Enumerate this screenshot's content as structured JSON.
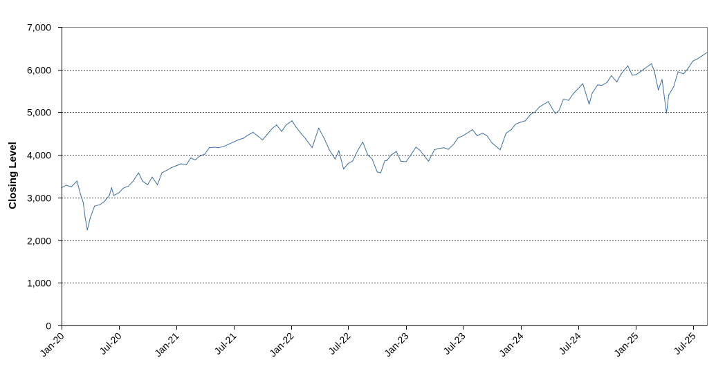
{
  "chart_data": {
    "type": "line",
    "title": "",
    "xlabel": "",
    "ylabel": "Closing Level",
    "ylim": [
      0,
      7000
    ],
    "yticks": [
      0,
      1000,
      2000,
      3000,
      4000,
      5000,
      6000,
      7000
    ],
    "ytick_labels": [
      "0",
      "1,000",
      "2,000",
      "3,000",
      "4,000",
      "5,000",
      "6,000",
      "7,000"
    ],
    "xlim": [
      "2020-01-01",
      "2025-08-15"
    ],
    "xticks": [
      "2020-01-01",
      "2020-07-01",
      "2021-01-01",
      "2021-07-01",
      "2022-01-01",
      "2022-07-01",
      "2023-01-01",
      "2023-07-01",
      "2024-01-01",
      "2024-07-01",
      "2025-01-01",
      "2025-07-01"
    ],
    "xtick_labels": [
      "Jan-20",
      "Jul-20",
      "Jan-21",
      "Jul-21",
      "Jan-22",
      "Jul-22",
      "Jan-23",
      "Jul-23",
      "Jan-24",
      "Jul-24",
      "Jan-25",
      "Jul-25"
    ],
    "grid": {
      "horizontal": true,
      "style": "dashed"
    },
    "line_color": "#3a6ea5",
    "series": [
      {
        "x": [
          "2020-01-01",
          "2020-01-15",
          "2020-02-01",
          "2020-02-19",
          "2020-03-01",
          "2020-03-10",
          "2020-03-16",
          "2020-03-23",
          "2020-04-01",
          "2020-04-15",
          "2020-05-01",
          "2020-05-15",
          "2020-06-01",
          "2020-06-08",
          "2020-06-15",
          "2020-07-01",
          "2020-07-15",
          "2020-08-01",
          "2020-08-15",
          "2020-09-02",
          "2020-09-15",
          "2020-10-01",
          "2020-10-15",
          "2020-11-01",
          "2020-11-15",
          "2020-12-01",
          "2020-12-15",
          "2021-01-01",
          "2021-01-15",
          "2021-02-01",
          "2021-02-15",
          "2021-03-01",
          "2021-03-15",
          "2021-04-01",
          "2021-04-15",
          "2021-05-01",
          "2021-05-15",
          "2021-06-01",
          "2021-06-15",
          "2021-07-01",
          "2021-07-15",
          "2021-08-01",
          "2021-08-15",
          "2021-09-01",
          "2021-09-15",
          "2021-10-01",
          "2021-10-15",
          "2021-11-01",
          "2021-11-15",
          "2021-12-01",
          "2021-12-15",
          "2022-01-03",
          "2022-01-15",
          "2022-02-01",
          "2022-02-15",
          "2022-03-08",
          "2022-03-29",
          "2022-04-15",
          "2022-05-01",
          "2022-05-20",
          "2022-06-01",
          "2022-06-16",
          "2022-07-01",
          "2022-07-15",
          "2022-08-01",
          "2022-08-16",
          "2022-09-01",
          "2022-09-15",
          "2022-10-01",
          "2022-10-12",
          "2022-10-25",
          "2022-11-01",
          "2022-11-15",
          "2022-12-01",
          "2022-12-15",
          "2023-01-01",
          "2023-01-15",
          "2023-02-01",
          "2023-02-15",
          "2023-03-13",
          "2023-04-01",
          "2023-04-15",
          "2023-05-01",
          "2023-05-15",
          "2023-06-01",
          "2023-06-15",
          "2023-07-01",
          "2023-07-31",
          "2023-08-15",
          "2023-09-01",
          "2023-09-15",
          "2023-10-01",
          "2023-10-27",
          "2023-11-15",
          "2023-12-01",
          "2023-12-15",
          "2024-01-01",
          "2024-01-15",
          "2024-02-01",
          "2024-02-15",
          "2024-03-01",
          "2024-03-28",
          "2024-04-19",
          "2024-05-01",
          "2024-05-15",
          "2024-06-01",
          "2024-06-15",
          "2024-07-16",
          "2024-08-05",
          "2024-08-15",
          "2024-09-01",
          "2024-09-15",
          "2024-10-01",
          "2024-10-15",
          "2024-11-01",
          "2024-11-15",
          "2024-12-06",
          "2024-12-20",
          "2025-01-01",
          "2025-01-15",
          "2025-02-19",
          "2025-03-01",
          "2025-03-13",
          "2025-03-25",
          "2025-04-08",
          "2025-04-15",
          "2025-05-01",
          "2025-05-15",
          "2025-06-01",
          "2025-06-15",
          "2025-07-01",
          "2025-07-15",
          "2025-08-01",
          "2025-08-15"
        ],
        "y": [
          3230,
          3290,
          3250,
          3386,
          3080,
          2880,
          2530,
          2240,
          2520,
          2800,
          2830,
          2900,
          3050,
          3230,
          3050,
          3110,
          3220,
          3270,
          3380,
          3580,
          3380,
          3300,
          3480,
          3300,
          3580,
          3640,
          3700,
          3750,
          3790,
          3770,
          3930,
          3880,
          3970,
          4020,
          4170,
          4180,
          4170,
          4200,
          4250,
          4300,
          4350,
          4390,
          4460,
          4530,
          4450,
          4350,
          4470,
          4620,
          4700,
          4550,
          4700,
          4800,
          4660,
          4500,
          4380,
          4170,
          4630,
          4390,
          4130,
          3900,
          4100,
          3670,
          3800,
          3860,
          4120,
          4300,
          4000,
          3900,
          3600,
          3580,
          3860,
          3870,
          4000,
          4080,
          3850,
          3840,
          3990,
          4180,
          4100,
          3850,
          4120,
          4150,
          4170,
          4130,
          4250,
          4400,
          4450,
          4590,
          4450,
          4510,
          4450,
          4280,
          4120,
          4510,
          4590,
          4720,
          4770,
          4800,
          4950,
          5010,
          5130,
          5250,
          4970,
          5040,
          5300,
          5280,
          5430,
          5670,
          5190,
          5450,
          5640,
          5630,
          5700,
          5860,
          5710,
          5900,
          6090,
          5870,
          5880,
          5950,
          6140,
          5950,
          5520,
          5770,
          4980,
          5400,
          5600,
          5950,
          5900,
          6020,
          6200,
          6250,
          6330,
          6400
        ]
      }
    ]
  }
}
